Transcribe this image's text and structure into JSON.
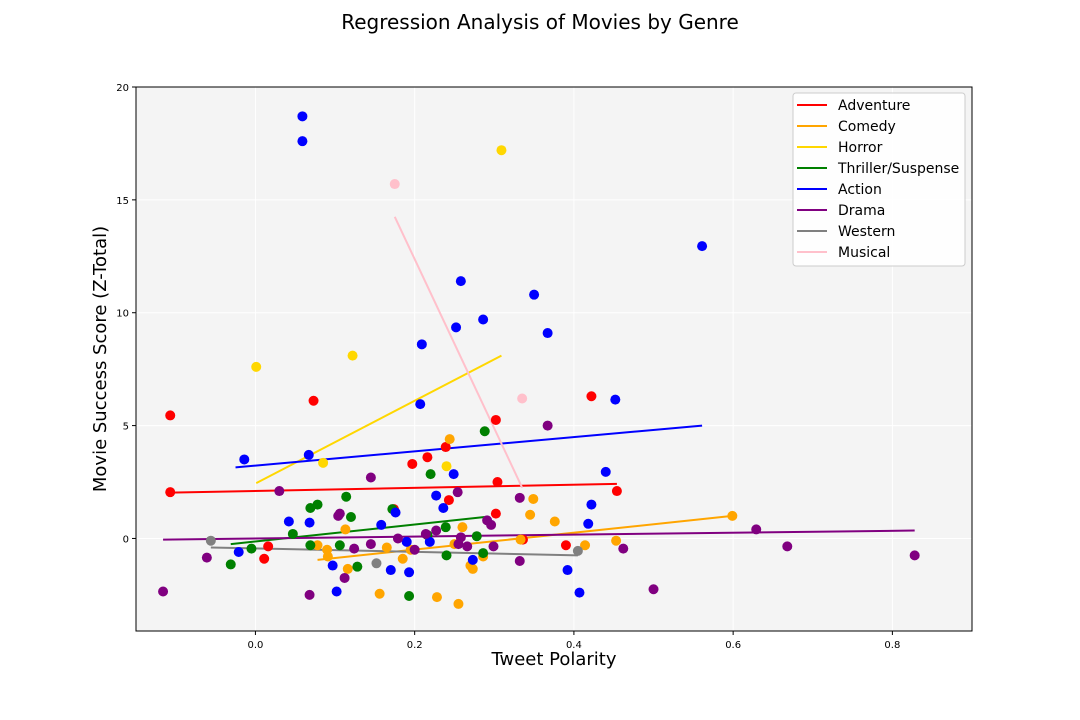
{
  "chart_data": {
    "type": "scatter",
    "title": "Regression Analysis of Movies by Genre",
    "xlabel": "Tweet Polarity",
    "ylabel": "Movie Success Score (Z-Total)",
    "xlim": [
      -0.15,
      0.9
    ],
    "ylim": [
      -4.1,
      20
    ],
    "xticks": [
      0.0,
      0.2,
      0.4,
      0.6,
      0.8
    ],
    "xtick_labels": [
      "0.0",
      "0.2",
      "0.4",
      "0.6",
      "0.8"
    ],
    "yticks": [
      0,
      5,
      10,
      15,
      20
    ],
    "ytick_labels": [
      "0",
      "5",
      "10",
      "15",
      "20"
    ],
    "grid": true,
    "legend_position": "top-right",
    "series": [
      {
        "name": "Adventure",
        "color": "#ff0000",
        "points": [
          [
            -0.107,
            5.45
          ],
          [
            -0.107,
            2.05
          ],
          [
            0.011,
            -0.9
          ],
          [
            0.016,
            -0.35
          ],
          [
            0.073,
            6.1
          ],
          [
            0.174,
            1.3
          ],
          [
            0.197,
            3.3
          ],
          [
            0.216,
            3.6
          ],
          [
            0.239,
            4.05
          ],
          [
            0.243,
            1.7
          ],
          [
            0.302,
            5.25
          ],
          [
            0.302,
            1.1
          ],
          [
            0.304,
            2.5
          ],
          [
            0.336,
            -0.05
          ],
          [
            0.39,
            -0.3
          ],
          [
            0.422,
            6.3
          ],
          [
            0.454,
            2.1
          ]
        ],
        "fit": [
          [
            -0.107,
            2.03
          ],
          [
            0.454,
            2.42
          ]
        ]
      },
      {
        "name": "Comedy",
        "color": "#ffa500",
        "points": [
          [
            0.078,
            -0.3
          ],
          [
            0.09,
            -0.5
          ],
          [
            0.091,
            -0.8
          ],
          [
            0.113,
            0.4
          ],
          [
            0.116,
            -1.35
          ],
          [
            0.156,
            -2.45
          ],
          [
            0.165,
            -0.4
          ],
          [
            0.185,
            -0.9
          ],
          [
            0.195,
            -0.5
          ],
          [
            0.228,
            -2.6
          ],
          [
            0.244,
            4.4
          ],
          [
            0.25,
            -0.25
          ],
          [
            0.26,
            0.5
          ],
          [
            0.27,
            -1.2
          ],
          [
            0.273,
            -1.35
          ],
          [
            0.286,
            -0.8
          ],
          [
            0.333,
            -0.05
          ],
          [
            0.345,
            1.05
          ],
          [
            0.349,
            1.75
          ],
          [
            0.376,
            0.75
          ],
          [
            0.414,
            -0.3
          ],
          [
            0.453,
            -0.1
          ],
          [
            0.599,
            1.0
          ],
          [
            0.255,
            -2.9
          ]
        ],
        "fit": [
          [
            0.078,
            -0.95
          ],
          [
            0.599,
            1.0
          ]
        ]
      },
      {
        "name": "Horror",
        "color": "#ffd700",
        "points": [
          [
            0.001,
            7.6
          ],
          [
            0.085,
            3.35
          ],
          [
            0.122,
            8.1
          ],
          [
            0.24,
            3.2
          ],
          [
            0.309,
            17.2
          ]
        ],
        "fit": [
          [
            0.001,
            2.45
          ],
          [
            0.309,
            8.1
          ]
        ]
      },
      {
        "name": "Thriller/Suspense",
        "color": "#008000",
        "points": [
          [
            -0.031,
            -1.15
          ],
          [
            -0.005,
            -0.45
          ],
          [
            0.047,
            0.2
          ],
          [
            0.069,
            1.35
          ],
          [
            0.069,
            -0.3
          ],
          [
            0.078,
            1.5
          ],
          [
            0.106,
            -0.3
          ],
          [
            0.114,
            1.85
          ],
          [
            0.12,
            0.95
          ],
          [
            0.128,
            -1.25
          ],
          [
            0.172,
            1.3
          ],
          [
            0.193,
            -2.55
          ],
          [
            0.22,
            2.85
          ],
          [
            0.239,
            0.5
          ],
          [
            0.24,
            -0.75
          ],
          [
            0.278,
            0.1
          ],
          [
            0.286,
            -0.65
          ],
          [
            0.288,
            4.75
          ],
          [
            0.216,
            0.15
          ]
        ],
        "fit": [
          [
            -0.031,
            -0.25
          ],
          [
            0.288,
            0.95
          ]
        ]
      },
      {
        "name": "Action",
        "color": "#0000ff",
        "points": [
          [
            -0.014,
            3.5
          ],
          [
            -0.021,
            -0.6
          ],
          [
            0.042,
            0.75
          ],
          [
            0.059,
            18.7
          ],
          [
            0.059,
            17.6
          ],
          [
            0.067,
            3.7
          ],
          [
            0.068,
            0.7
          ],
          [
            0.097,
            -1.2
          ],
          [
            0.102,
            -2.35
          ],
          [
            0.158,
            0.6
          ],
          [
            0.17,
            -1.4
          ],
          [
            0.176,
            1.15
          ],
          [
            0.19,
            -0.15
          ],
          [
            0.193,
            -1.5
          ],
          [
            0.207,
            5.95
          ],
          [
            0.209,
            8.6
          ],
          [
            0.219,
            -0.15
          ],
          [
            0.227,
            1.9
          ],
          [
            0.236,
            1.35
          ],
          [
            0.249,
            2.85
          ],
          [
            0.252,
            9.35
          ],
          [
            0.258,
            11.4
          ],
          [
            0.273,
            -0.95
          ],
          [
            0.286,
            9.7
          ],
          [
            0.35,
            10.8
          ],
          [
            0.367,
            9.1
          ],
          [
            0.392,
            -1.4
          ],
          [
            0.407,
            -2.4
          ],
          [
            0.418,
            0.65
          ],
          [
            0.422,
            1.5
          ],
          [
            0.44,
            2.95
          ],
          [
            0.452,
            6.15
          ],
          [
            0.561,
            12.95
          ]
        ],
        "fit": [
          [
            -0.025,
            3.15
          ],
          [
            0.561,
            5.0
          ]
        ]
      },
      {
        "name": "Drama",
        "color": "#800080",
        "points": [
          [
            -0.116,
            -2.35
          ],
          [
            -0.061,
            -0.85
          ],
          [
            0.03,
            2.1
          ],
          [
            0.068,
            -2.5
          ],
          [
            0.104,
            1.0
          ],
          [
            0.106,
            1.1
          ],
          [
            0.112,
            -1.75
          ],
          [
            0.124,
            -0.45
          ],
          [
            0.145,
            2.7
          ],
          [
            0.145,
            -0.25
          ],
          [
            0.179,
            0.0
          ],
          [
            0.2,
            -0.5
          ],
          [
            0.214,
            0.2
          ],
          [
            0.227,
            0.35
          ],
          [
            0.254,
            2.05
          ],
          [
            0.255,
            -0.25
          ],
          [
            0.258,
            0.05
          ],
          [
            0.266,
            -0.35
          ],
          [
            0.291,
            0.8
          ],
          [
            0.296,
            0.6
          ],
          [
            0.299,
            -0.35
          ],
          [
            0.332,
            -1.0
          ],
          [
            0.332,
            1.8
          ],
          [
            0.367,
            5.0
          ],
          [
            0.462,
            -0.45
          ],
          [
            0.5,
            -2.25
          ],
          [
            0.629,
            0.4
          ],
          [
            0.668,
            -0.35
          ],
          [
            0.828,
            -0.75
          ]
        ],
        "fit": [
          [
            -0.116,
            -0.05
          ],
          [
            0.828,
            0.35
          ]
        ]
      },
      {
        "name": "Western",
        "color": "#808080",
        "points": [
          [
            -0.056,
            -0.1
          ],
          [
            0.152,
            -1.1
          ],
          [
            0.405,
            -0.55
          ]
        ],
        "fit": [
          [
            -0.056,
            -0.4
          ],
          [
            0.405,
            -0.75
          ]
        ]
      },
      {
        "name": "Musical",
        "color": "#ffc0cb",
        "points": [
          [
            0.175,
            15.7
          ],
          [
            0.335,
            6.2
          ]
        ],
        "fit": [
          [
            0.175,
            14.25
          ],
          [
            0.335,
            2.25
          ]
        ]
      }
    ]
  }
}
